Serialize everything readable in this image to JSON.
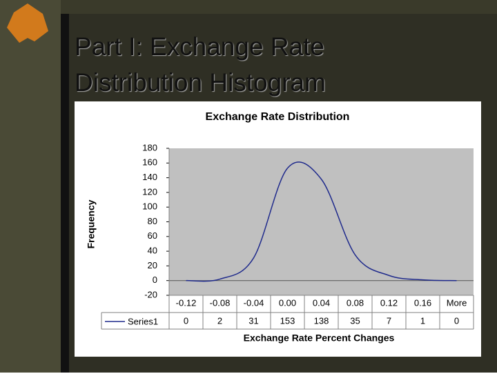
{
  "slide_title": "Part I: Exchange Rate Distribution Histogram",
  "chart_data": {
    "type": "line",
    "title": "Exchange Rate Distribution",
    "x_label": "Exchange Rate Percent Changes",
    "y_label": "Frequency",
    "categories": [
      "-0.12",
      "-0.08",
      "-0.04",
      "0.00",
      "0.04",
      "0.08",
      "0.12",
      "0.16",
      "More"
    ],
    "series": [
      {
        "name": "Series1",
        "color": "#1f2a8c",
        "values": [
          0,
          2,
          31,
          153,
          138,
          35,
          7,
          1,
          0
        ]
      }
    ],
    "ylim": [
      -20,
      180
    ],
    "yticks": [
      -20,
      0,
      20,
      40,
      60,
      80,
      100,
      120,
      140,
      160,
      180
    ],
    "plot_background": "#c0c0c0",
    "data_table": true
  }
}
